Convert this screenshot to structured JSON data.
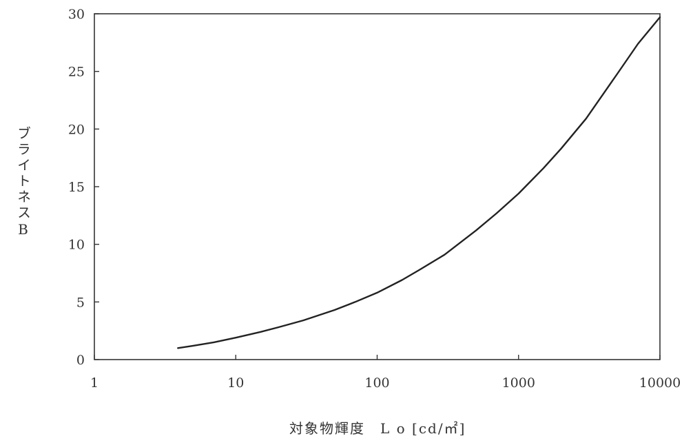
{
  "chart_data": {
    "type": "line",
    "xlabel": "対象物輝度　L o [cd/㎡]",
    "ylabel": "ブライトネスB",
    "x_scale": "log",
    "xlim": [
      1,
      10000
    ],
    "ylim": [
      0,
      30
    ],
    "x_ticks": [
      "1",
      "10",
      "100",
      "1000",
      "10000"
    ],
    "y_ticks": [
      "0",
      "5",
      "10",
      "15",
      "20",
      "25",
      "30"
    ],
    "grid": false,
    "series": [
      {
        "x": [
          3.9,
          5,
          7,
          10,
          15,
          20,
          30,
          50,
          70,
          100,
          150,
          200,
          300,
          500,
          700,
          1000,
          1500,
          2000,
          3000,
          5000,
          7000,
          10000
        ],
        "y": [
          1.0,
          1.2,
          1.5,
          1.9,
          2.4,
          2.8,
          3.4,
          4.3,
          5.0,
          5.8,
          6.9,
          7.8,
          9.1,
          11.2,
          12.7,
          14.4,
          16.6,
          18.3,
          20.9,
          24.8,
          27.4,
          29.7
        ],
        "color": "#222222"
      }
    ]
  }
}
